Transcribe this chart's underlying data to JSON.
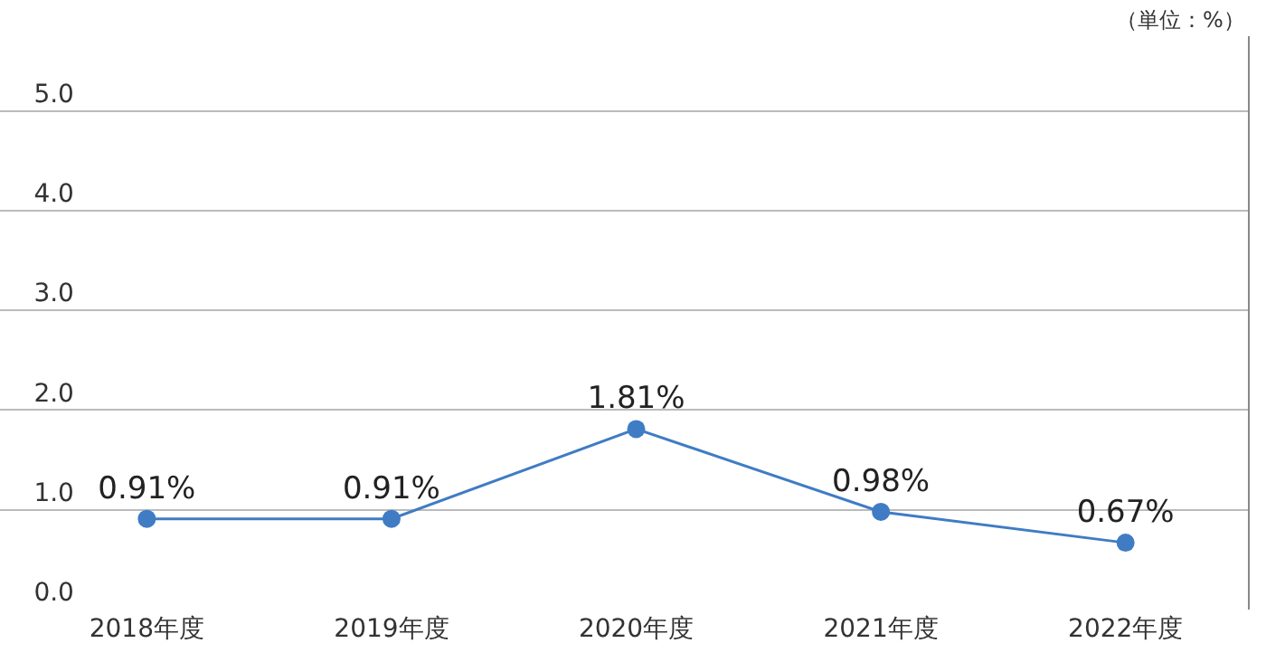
{
  "chart_data": {
    "type": "line",
    "categories": [
      "2018年度",
      "2019年度",
      "2020年度",
      "2021年度",
      "2022年度"
    ],
    "series": [
      {
        "color": "#3f7cc4",
        "values": [
          0.91,
          0.91,
          1.81,
          0.98,
          0.67
        ],
        "value_labels": [
          "0.91%",
          "0.91%",
          "1.81%",
          "0.98%",
          "0.67%"
        ]
      }
    ],
    "ylim": [
      0,
      5.75
    ],
    "yticks": [
      {
        "value": 0,
        "label": "0.0"
      },
      {
        "value": 1,
        "label": "1.0"
      },
      {
        "value": 2,
        "label": "2.0"
      },
      {
        "value": 3,
        "label": "3.0"
      },
      {
        "value": 4,
        "label": "4.0"
      },
      {
        "value": 5,
        "label": "5.0"
      }
    ],
    "grid": "y",
    "marker": "circle",
    "line_style": "solid",
    "legend": false,
    "annotations": [
      "（単位：%）"
    ]
  }
}
